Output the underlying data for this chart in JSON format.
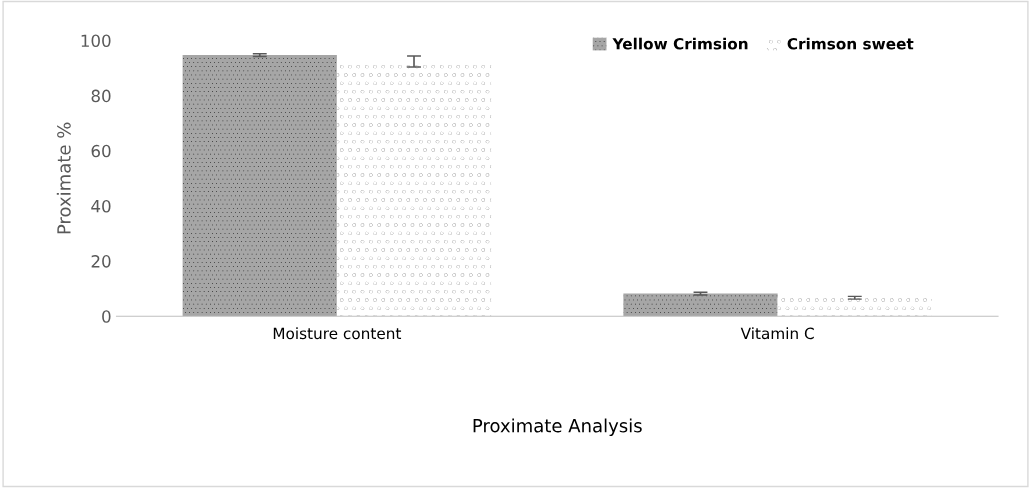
{
  "chart_data": {
    "type": "bar",
    "xlabel": "Proximate Analysis",
    "ylabel": "Proximate %",
    "categories": [
      "Moisture content",
      "Vitamin C"
    ],
    "series": [
      {
        "name": "Yellow Crimsion",
        "color": "#a6a6a6",
        "values": [
          94.7,
          8.2
        ],
        "errors": [
          0.5,
          0.5
        ]
      },
      {
        "name": "Crimson sweet",
        "color": "#ffffff",
        "values": [
          92.4,
          6.7
        ],
        "errors": [
          2,
          0.5
        ]
      }
    ],
    "ylim": [
      0,
      100
    ],
    "yticks": [
      0,
      20,
      40,
      60,
      80,
      100
    ],
    "grid": false,
    "legend": "top right"
  }
}
